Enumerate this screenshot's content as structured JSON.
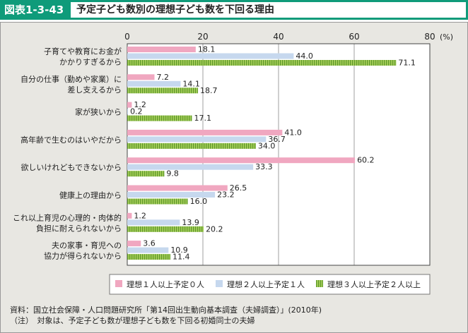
{
  "header": {
    "badge": "図表1-3-43",
    "title": "予定子ども数別の理想子ども数を下回る理由"
  },
  "chart_data": {
    "type": "bar",
    "orientation": "horizontal",
    "title": "予定子ども数別の理想子ども数を下回る理由",
    "unit_label": "(%)",
    "xlim": [
      0,
      80
    ],
    "ticks": [
      0,
      20,
      40,
      60,
      80
    ],
    "categories": [
      [
        "子育てや教育にお金が",
        "かかりすぎるから"
      ],
      [
        "自分の仕事（勤めや家業）に",
        "差し支えるから"
      ],
      [
        "家が狭いから"
      ],
      [
        "高年齢で生むのはいやだから"
      ],
      [
        "欲しいけれどもできないから"
      ],
      [
        "健康上の理由から"
      ],
      [
        "これ以上育児の心理的・肉体的",
        "負担に耐えられないから"
      ],
      [
        "夫の家事・育児への",
        "協力が得られないから"
      ]
    ],
    "series": [
      {
        "name": "理想１人以上予定０人",
        "color": "#f0a7c0",
        "values": [
          18.1,
          7.2,
          1.2,
          41.0,
          60.2,
          26.5,
          1.2,
          3.6
        ]
      },
      {
        "name": "理想２人以上予定１人",
        "color": "#c6d8ee",
        "values": [
          44.0,
          14.1,
          0.2,
          36.7,
          33.3,
          23.2,
          13.9,
          10.9
        ]
      },
      {
        "name": "理想３人以上予定２人以上",
        "color": "#8dbb3e",
        "values": [
          71.1,
          18.7,
          17.1,
          34.0,
          9.8,
          16.0,
          20.2,
          11.4
        ]
      }
    ],
    "legend_position": "bottom-right"
  },
  "notes": [
    "資料：国立社会保障・人口問題研究所「第14回出生動向基本調査（夫婦調査）」(2010年)",
    "（注）　対象は、予定子ども数が理想子ども数を下回る初婚同士の夫婦"
  ]
}
